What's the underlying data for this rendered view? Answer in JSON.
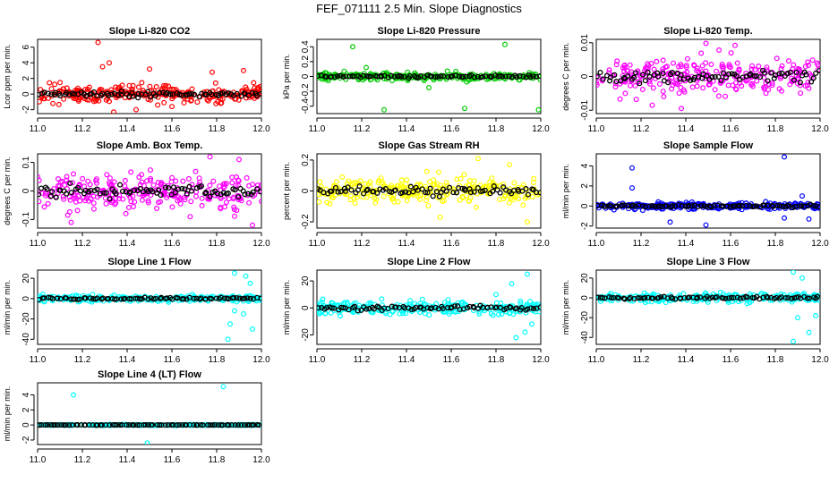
{
  "figure": {
    "title": "FEF_071111  2.5 Min. Slope Diagnostics"
  },
  "chart_data": [
    {
      "type": "scatter",
      "title": "Slope Li-820 CO2",
      "ylabel": "Lcor ppm per min.",
      "xlim": [
        11.0,
        12.0
      ],
      "ylim": [
        -2.5,
        7
      ],
      "yticks": [
        -2,
        0,
        2,
        4,
        6
      ],
      "xticks": [
        11.0,
        11.2,
        11.4,
        11.6,
        11.8,
        12.0
      ],
      "color": "#ff0000",
      "spread": 0.9,
      "outliers": [
        [
          11.27,
          6.6
        ],
        [
          11.32,
          4.0
        ],
        [
          11.29,
          3.5
        ],
        [
          11.5,
          3.2
        ],
        [
          11.78,
          2.8
        ],
        [
          11.92,
          3.0
        ],
        [
          11.34,
          -2.3
        ],
        [
          11.44,
          -2.0
        ],
        [
          11.6,
          -1.6
        ]
      ]
    },
    {
      "type": "scatter",
      "title": "Slope Li-820 Pressure",
      "ylabel": "kPa per min.",
      "xlim": [
        11.0,
        12.0
      ],
      "ylim": [
        -0.5,
        0.5
      ],
      "yticks": [
        -0.4,
        -0.2,
        0.0,
        0.2,
        0.4
      ],
      "xticks": [
        11.0,
        11.2,
        11.4,
        11.6,
        11.8,
        12.0
      ],
      "color": "#00cc00",
      "spread": 0.04,
      "outliers": [
        [
          11.16,
          0.4
        ],
        [
          11.84,
          0.43
        ],
        [
          11.3,
          -0.45
        ],
        [
          11.66,
          -0.43
        ],
        [
          11.99,
          -0.45
        ],
        [
          11.5,
          -0.15
        ],
        [
          11.22,
          0.12
        ]
      ]
    },
    {
      "type": "scatter",
      "title": "Slope Li-820 Temp.",
      "ylabel": "degrees C per min.",
      "xlim": [
        11.0,
        12.0
      ],
      "ylim": [
        -0.011,
        0.011
      ],
      "yticks": [
        -0.01,
        0.0,
        0.01
      ],
      "xticks": [
        11.0,
        11.2,
        11.4,
        11.6,
        11.8,
        12.0
      ],
      "color": "#ff00ff",
      "spread": 0.0045,
      "outliers": [
        [
          11.49,
          0.0098
        ],
        [
          11.38,
          -0.0095
        ],
        [
          11.62,
          0.0092
        ],
        [
          11.25,
          -0.0085
        ]
      ]
    },
    {
      "type": "scatter",
      "title": "Slope Amb. Box Temp.",
      "ylabel": "degrees C per min.",
      "xlim": [
        11.0,
        12.0
      ],
      "ylim": [
        -0.13,
        0.13
      ],
      "yticks": [
        -0.1,
        0.0,
        0.1
      ],
      "xticks": [
        11.0,
        11.2,
        11.4,
        11.6,
        11.8,
        12.0
      ],
      "color": "#ff00ff",
      "spread": 0.05,
      "outliers": [
        [
          11.77,
          0.12
        ],
        [
          11.9,
          0.11
        ],
        [
          11.96,
          -0.12
        ],
        [
          11.15,
          -0.11
        ]
      ]
    },
    {
      "type": "scatter",
      "title": "Slope Gas Stream RH",
      "ylabel": "percent per min.",
      "xlim": [
        11.0,
        12.0
      ],
      "ylim": [
        -0.24,
        0.24
      ],
      "yticks": [
        -0.2,
        0.0,
        0.2
      ],
      "xticks": [
        11.0,
        11.2,
        11.4,
        11.6,
        11.8,
        12.0
      ],
      "color": "#ffff00",
      "spread": 0.07,
      "outliers": [
        [
          11.72,
          0.21
        ],
        [
          11.86,
          0.17
        ],
        [
          11.94,
          -0.2
        ],
        [
          11.55,
          -0.17
        ]
      ]
    },
    {
      "type": "scatter",
      "title": "Slope Sample Flow",
      "ylabel": "ml/min per min.",
      "xlim": [
        11.0,
        12.0
      ],
      "ylim": [
        -2.2,
        5.2
      ],
      "yticks": [
        -2,
        0,
        2,
        4
      ],
      "xticks": [
        11.0,
        11.2,
        11.4,
        11.6,
        11.8,
        12.0
      ],
      "color": "#0000ff",
      "spread": 0.25,
      "outliers": [
        [
          11.84,
          4.9
        ],
        [
          11.16,
          3.8
        ],
        [
          11.16,
          1.8
        ],
        [
          11.33,
          -1.6
        ],
        [
          11.49,
          -1.9
        ],
        [
          11.84,
          -1.2
        ],
        [
          11.95,
          -1.3
        ],
        [
          11.92,
          1.0
        ]
      ]
    },
    {
      "type": "scatter",
      "title": "Slope Line 1 Flow",
      "ylabel": "ml/min per min.",
      "xlim": [
        11.0,
        12.0
      ],
      "ylim": [
        -45,
        28
      ],
      "yticks": [
        -40,
        -20,
        0,
        20
      ],
      "xticks": [
        11.0,
        11.2,
        11.4,
        11.6,
        11.8,
        12.0
      ],
      "color": "#00ffff",
      "spread": 2.5,
      "outliers": [
        [
          11.88,
          25
        ],
        [
          11.93,
          22
        ],
        [
          11.88,
          -12
        ],
        [
          11.92,
          -15
        ],
        [
          11.86,
          -25
        ],
        [
          11.85,
          -40
        ],
        [
          11.96,
          -30
        ],
        [
          11.95,
          15
        ]
      ]
    },
    {
      "type": "scatter",
      "title": "Slope Line 2 Flow",
      "ylabel": "ml/min per min.",
      "xlim": [
        11.0,
        12.0
      ],
      "ylim": [
        -27,
        28
      ],
      "yticks": [
        -20,
        0,
        20
      ],
      "xticks": [
        11.0,
        11.2,
        11.4,
        11.6,
        11.8,
        12.0
      ],
      "color": "#00ffff",
      "spread": 4,
      "outliers": [
        [
          11.94,
          25
        ],
        [
          11.87,
          18
        ],
        [
          11.89,
          -22
        ],
        [
          11.93,
          -18
        ],
        [
          11.96,
          -12
        ],
        [
          11.8,
          10
        ]
      ]
    },
    {
      "type": "scatter",
      "title": "Slope Line 3 Flow",
      "ylabel": "ml/min per min.",
      "xlim": [
        11.0,
        12.0
      ],
      "ylim": [
        -47,
        28
      ],
      "yticks": [
        -40,
        -20,
        0,
        20
      ],
      "xticks": [
        11.0,
        11.2,
        11.4,
        11.6,
        11.8,
        12.0
      ],
      "color": "#00ffff",
      "spread": 3.5,
      "outliers": [
        [
          11.88,
          26
        ],
        [
          11.92,
          20
        ],
        [
          11.88,
          -44
        ],
        [
          11.95,
          -35
        ],
        [
          11.98,
          -18
        ],
        [
          11.9,
          -20
        ]
      ]
    },
    {
      "type": "scatter",
      "title": "Slope Line 4 (LT) Flow",
      "ylabel": "ml/min per min.",
      "xlim": [
        11.0,
        12.0
      ],
      "ylim": [
        -2.6,
        5.6
      ],
      "yticks": [
        -2,
        0,
        2,
        4
      ],
      "xticks": [
        11.0,
        11.2,
        11.4,
        11.6,
        11.8,
        12.0
      ],
      "color": "#00ffff",
      "spread": 0.05,
      "outliers": [
        [
          11.16,
          4.0
        ],
        [
          11.83,
          5.1
        ],
        [
          11.49,
          -2.4
        ]
      ]
    }
  ]
}
